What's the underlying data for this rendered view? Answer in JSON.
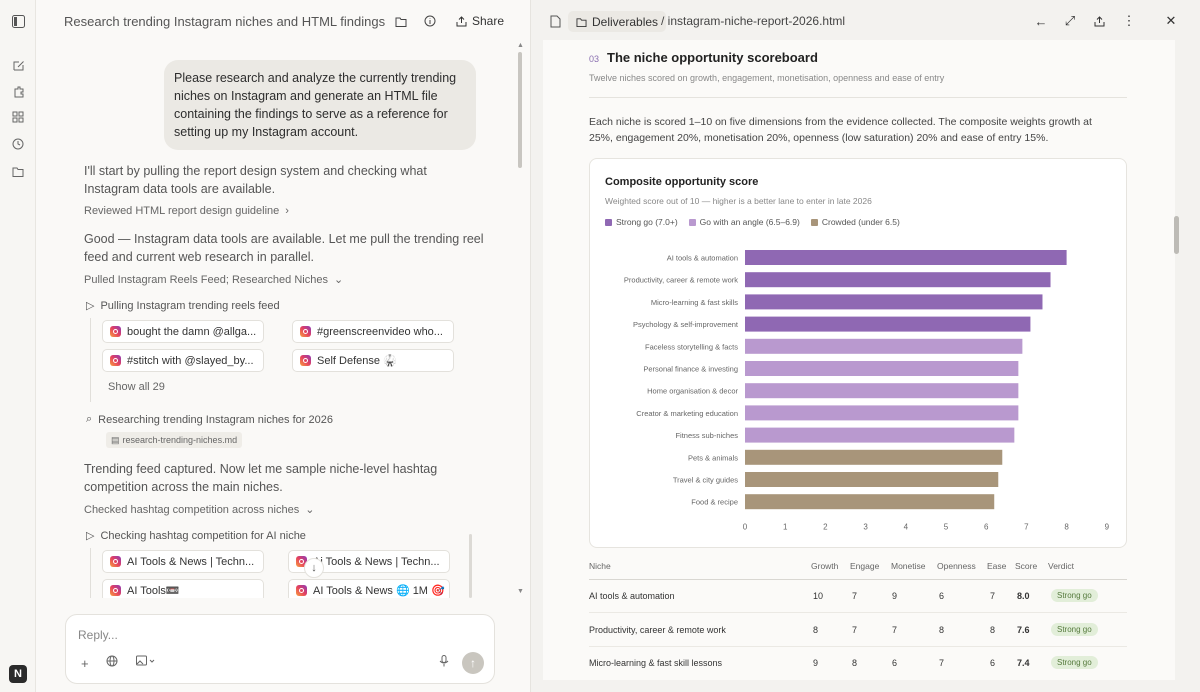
{
  "chat": {
    "title": "Research trending Instagram niches and HTML findings",
    "share_label": "Share",
    "user_message": "Please research and analyze the currently trending niches on Instagram and generate an HTML file containing the findings to serve as a reference for setting up my Instagram account.",
    "msg1": "I'll start by pulling the report design system and checking what Instagram data tools are available.",
    "step1": "Reviewed HTML report design guideline",
    "msg2": "Good — Instagram data tools are available. Let me pull the trending reel feed and current web research in parallel.",
    "step2": "Pulled Instagram Reels Feed; Researched Niches",
    "sub1": "Pulling Instagram trending reels feed",
    "reels": [
      "bought the damn @allga...",
      "#greenscreenvideo who...",
      "#stitch with @slayed_by...",
      "Self Defense 🥋"
    ],
    "show_all": "Show all 29",
    "sub2": "Researching trending Instagram niches for 2026",
    "file_chip": "research-trending-niches.md",
    "msg3": "Trending feed captured. Now let me sample niche-level hashtag competition across the main niches.",
    "step3": "Checked hashtag competition across niches",
    "sub3": "Checking hashtag competition for AI niche",
    "hashtags": [
      "AI Tools & News | Techn...",
      "Ai Tools & News | Techn...",
      "AI Tools📼",
      "AI Tools & News 🌐 1M 🎯"
    ],
    "composer_placeholder": "Reply...",
    "avatar_letter": "N"
  },
  "viewer": {
    "folder": "Deliverables",
    "file": "/ instagram-niche-report-2026.html"
  },
  "doc": {
    "section_number": "03",
    "section_title": "The niche opportunity scoreboard",
    "section_sub": "Twelve niches scored on growth, engagement, monetisation, openness and ease of entry",
    "paragraph": "Each niche is scored 1–10 on five dimensions from the evidence collected. The composite weights growth at 25%, engagement 20%, monetisation 20%, openness (low saturation) 20% and ease of entry 15%.",
    "chart_title": "Composite opportunity score",
    "chart_sub": "Weighted score out of 10 — higher is a better lane to enter in late 2026",
    "legend": [
      {
        "label": "Strong go (7.0+)",
        "color": "#8f68b3"
      },
      {
        "label": "Go with an angle (6.5–6.9)",
        "color": "#b999cf"
      },
      {
        "label": "Crowded (under 6.5)",
        "color": "#a8957a"
      }
    ],
    "table": {
      "headers": [
        "Niche",
        "Growth",
        "Engage",
        "Monetise",
        "Openness",
        "Ease",
        "Score",
        "Verdict"
      ],
      "rows": [
        [
          "AI tools & automation",
          "10",
          "7",
          "9",
          "6",
          "7",
          "8.0",
          "Strong go"
        ],
        [
          "Productivity, career & remote work",
          "8",
          "7",
          "7",
          "8",
          "8",
          "7.6",
          "Strong go"
        ],
        [
          "Micro-learning & fast skill lessons",
          "9",
          "8",
          "6",
          "7",
          "6",
          "7.4",
          "Strong go"
        ]
      ]
    }
  },
  "chart_data": {
    "type": "bar",
    "orientation": "horizontal",
    "title": "Composite opportunity score",
    "subtitle": "Weighted score out of 10 — higher is a better lane to enter in late 2026",
    "categories": [
      "AI tools & automation",
      "Productivity, career & remote work",
      "Micro-learning & fast skills",
      "Psychology & self-improvement",
      "Faceless storytelling & facts",
      "Personal finance & investing",
      "Home organisation & decor",
      "Creator & marketing education",
      "Fitness sub-niches",
      "Pets & animals",
      "Travel & city guides",
      "Food & recipe"
    ],
    "values": [
      8.0,
      7.6,
      7.4,
      7.1,
      6.9,
      6.8,
      6.8,
      6.8,
      6.7,
      6.4,
      6.3,
      6.2
    ],
    "groups": [
      "strong",
      "strong",
      "strong",
      "strong",
      "angle",
      "angle",
      "angle",
      "angle",
      "angle",
      "crowded",
      "crowded",
      "crowded"
    ],
    "colors": {
      "strong": "#8f68b3",
      "angle": "#b999cf",
      "crowded": "#a8957a"
    },
    "xlim": [
      0,
      9
    ],
    "xticks": [
      "0",
      "1",
      "2",
      "3",
      "4",
      "5",
      "6",
      "7",
      "8",
      "9"
    ],
    "grid": false,
    "legend_position": "top-left"
  }
}
